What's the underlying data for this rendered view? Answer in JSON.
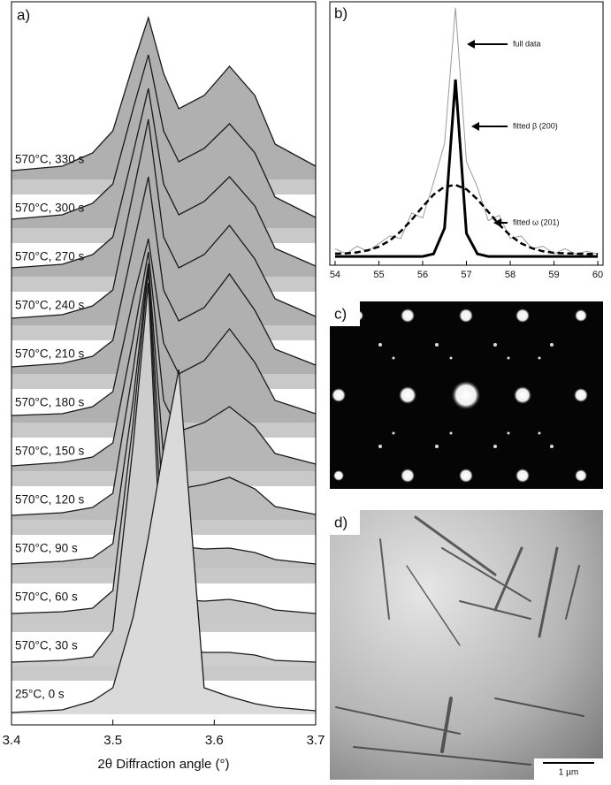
{
  "chart_data": [
    {
      "type": "waterfall",
      "panel_label": "a)",
      "xlabel": "2θ Diffraction angle (°)",
      "x": [
        3.4,
        3.45,
        3.48,
        3.5,
        3.52,
        3.535,
        3.55,
        3.565,
        3.59,
        3.615,
        3.64,
        3.66,
        3.7
      ],
      "xlim": [
        3.4,
        3.7
      ],
      "xticks": [
        3.4,
        3.5,
        3.6,
        3.7
      ],
      "line_color": "#1a1a1a",
      "band_color": "#c9c9c9",
      "series": [
        {
          "name": "570°C, 330 s",
          "color": "#b0b0b0",
          "values": [
            10,
            15,
            30,
            55,
            130,
            183,
            120,
            80,
            95,
            128,
            95,
            40,
            15
          ]
        },
        {
          "name": "570°C, 300 s",
          "color": "#b0b0b0",
          "values": [
            10,
            15,
            28,
            50,
            135,
            196,
            110,
            75,
            90,
            118,
            85,
            35,
            12
          ]
        },
        {
          "name": "570°C, 270 s",
          "color": "#b0b0b0",
          "values": [
            10,
            14,
            25,
            45,
            140,
            213,
            105,
            70,
            85,
            113,
            80,
            32,
            12
          ]
        },
        {
          "name": "570°C, 240 s",
          "color": "#b0b0b0",
          "values": [
            8,
            12,
            22,
            40,
            150,
            233,
            100,
            65,
            80,
            113,
            75,
            30,
            10
          ]
        },
        {
          "name": "570°C, 210 s",
          "color": "#b0b0b0",
          "values": [
            8,
            12,
            20,
            38,
            145,
            223,
            95,
            60,
            75,
            113,
            72,
            28,
            10
          ]
        },
        {
          "name": "570°C, 180 s",
          "color": "#b0b0b0",
          "values": [
            8,
            10,
            18,
            35,
            140,
            208,
            90,
            55,
            70,
            106,
            68,
            25,
            10
          ]
        },
        {
          "name": "570°C, 150 s",
          "color": "#b6b6b6",
          "values": [
            6,
            10,
            16,
            32,
            150,
            248,
            80,
            45,
            55,
            73,
            50,
            20,
            8
          ]
        },
        {
          "name": "570°C, 120 s",
          "color": "#bcbcbc",
          "values": [
            5,
            8,
            14,
            30,
            170,
            290,
            70,
            35,
            40,
            48,
            35,
            15,
            6
          ]
        },
        {
          "name": "570°C, 90 s",
          "color": "#c2c2c2",
          "values": [
            5,
            8,
            12,
            28,
            190,
            343,
            60,
            25,
            22,
            23,
            18,
            10,
            5
          ]
        },
        {
          "name": "570°C, 60 s",
          "color": "#c8c8c8",
          "values": [
            4,
            6,
            10,
            30,
            220,
            393,
            50,
            20,
            18,
            20,
            15,
            8,
            4
          ]
        },
        {
          "name": "570°C, 30 s",
          "color": "#cecece",
          "values": [
            4,
            6,
            10,
            40,
            250,
            433,
            45,
            18,
            15,
            15,
            12,
            6,
            4
          ]
        },
        {
          "name": "25°C, 0 s",
          "color": "#dadada",
          "values": [
            2,
            5,
            15,
            30,
            110,
            200,
            300,
            390,
            30,
            20,
            12,
            8,
            4
          ]
        }
      ]
    },
    {
      "type": "line",
      "panel_label": "b)",
      "x": [
        54,
        54.25,
        54.5,
        54.75,
        55,
        55.25,
        55.5,
        55.75,
        56,
        56.25,
        56.5,
        56.75,
        57,
        57.25,
        57.5,
        57.75,
        58,
        58.25,
        58.5,
        58.75,
        59,
        59.25,
        59.5,
        59.75,
        60
      ],
      "xlim": [
        53.88,
        60.12
      ],
      "xticks": [
        54,
        55,
        56,
        57,
        58,
        59,
        60
      ],
      "series": [
        {
          "name": "full data",
          "color": "#9a9a9a",
          "style": "thin",
          "values": [
            4,
            2,
            5,
            3,
            6,
            9,
            8,
            18,
            16,
            30,
            45,
            98,
            38,
            28,
            15,
            17,
            8,
            9,
            4,
            5,
            2,
            4,
            2,
            3,
            2
          ]
        },
        {
          "name": "fitted β (200)",
          "color": "#000000",
          "style": "thick",
          "values": [
            1,
            1,
            1,
            1,
            1,
            1,
            1,
            1,
            1,
            2,
            12,
            70,
            10,
            2,
            1,
            1,
            1,
            1,
            1,
            1,
            1,
            1,
            1,
            1,
            1
          ]
        },
        {
          "name": "fitted ω (201)",
          "color": "#000000",
          "style": "dashed",
          "values": [
            2.1,
            2.2,
            2.6,
            3.4,
            4.8,
            7.2,
            10.8,
            15.3,
            20.4,
            25.1,
            28.2,
            28.9,
            27.2,
            23.3,
            18.4,
            13.4,
            9.2,
            6.1,
            4.2,
            3,
            2.4,
            2.2,
            2.1,
            2,
            2
          ]
        }
      ]
    }
  ],
  "panels": {
    "c": {
      "label": "c)"
    },
    "d": {
      "label": "d)",
      "scale_bar": "1 µm"
    }
  }
}
